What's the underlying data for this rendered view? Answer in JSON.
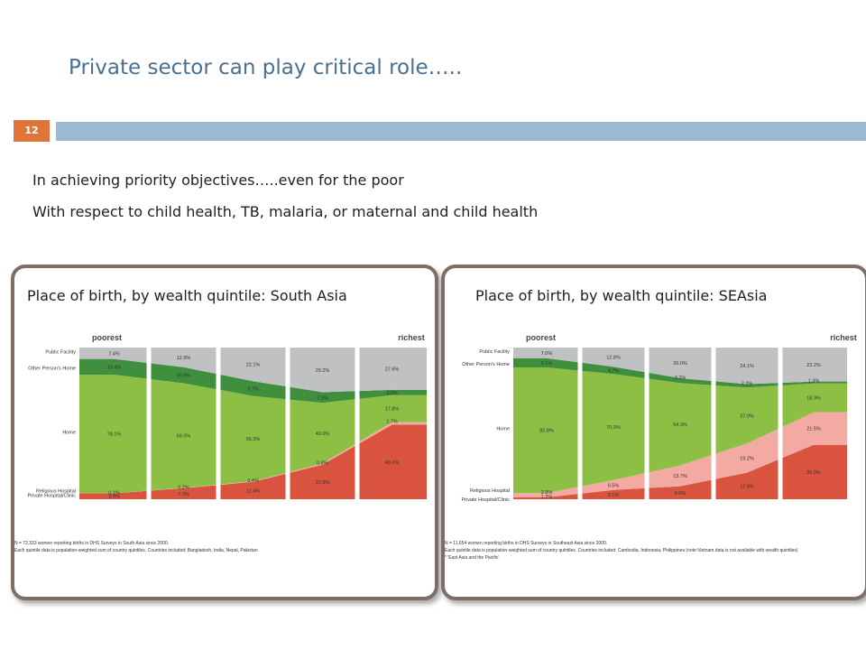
{
  "slide": {
    "title": "Private sector can play critical role…..",
    "number": "12",
    "bullets": [
      "In  achieving priority objectives…..even for the poor",
      "With respect to child health, TB, malaria, or maternal and child health"
    ],
    "colors": {
      "title": "#4a6f8f",
      "band": "#9cb8d3",
      "number_bg": "#e0743a"
    }
  },
  "chart_data": [
    {
      "type": "area",
      "title": "Place of birth, by wealth quintile: South Asia",
      "top_left_label": "poorest",
      "top_right_label": "richest",
      "quintiles": 5,
      "categories": [
        "Private Hospital/Clinic",
        "Religious Hospital",
        "Home",
        "Other Person's Home",
        "Public Facility"
      ],
      "category_labels": [
        "Public Facility",
        "Other Person's Home",
        "Home",
        "Religious Hospital",
        "Private Hospital/Clinic"
      ],
      "series": [
        {
          "name": "Private Hospital/Clinic",
          "color": "#d9533f",
          "values": [
            3.9,
            7.3,
            11.4,
            22.8,
            49.1
          ],
          "labels": [
            "3.9%",
            "7.3%",
            "11.4%",
            "22.8%",
            "49.1%"
          ]
        },
        {
          "name": "Religious Hospital",
          "color": "#f2aaa2",
          "values": [
            0.1,
            0.2,
            0.4,
            0.8,
            1.7
          ],
          "labels": [
            "0.1%",
            "0.2%",
            "0.4%",
            "0.8%",
            "1.7%"
          ]
        },
        {
          "name": "Home",
          "color": "#8dbf45",
          "values": [
            78.1,
            69.0,
            56.3,
            40.0,
            17.8
          ],
          "labels": [
            "78.1%",
            "69.0%",
            "56.3%",
            "40.0%",
            "17.8%"
          ]
        },
        {
          "name": "Other Person's Home",
          "color": "#3f8f3f",
          "values": [
            10.4,
            10.6,
            9.7,
            7.0,
            3.5
          ],
          "labels": [
            "10.4%",
            "10.6%",
            "9.7%",
            "7.0%",
            "3.5%"
          ]
        },
        {
          "name": "Public Facility",
          "color": "#bfc1c3",
          "values": [
            7.4,
            12.9,
            22.1,
            29.2,
            27.6
          ],
          "labels": [
            "7.4%",
            "12.9%",
            "22.1%",
            "29.2%",
            "27.6%"
          ]
        }
      ],
      "notes": [
        "N = 72,333 women reporting births in DHS Surveys in South Asia since 2000.",
        "Each quintile data is population-weighted sum of country quintiles.  Countries included: Bangladesh, India, Nepal, Pakistan"
      ]
    },
    {
      "type": "area",
      "title": "Place of birth, by wealth quintile: SEAsia",
      "top_left_label": "poorest",
      "top_right_label": "richest",
      "quintiles": 5,
      "categories": [
        "Private Hospital/Clinic",
        "Religious Hospital",
        "Home",
        "Other Person's Home",
        "Public Facility"
      ],
      "category_labels": [
        "Public Facility",
        "Other Person's Home",
        "Home",
        "Religious Hospital",
        "Private Hospital/Clinic"
      ],
      "series": [
        {
          "name": "Private Hospital/Clinic",
          "color": "#d9533f",
          "values": [
            1.2,
            6.1,
            8.6,
            17.5,
            35.9
          ],
          "labels": [
            "1.2%",
            "6.1%",
            "8.6%",
            "17.5%",
            "35.9%"
          ]
        },
        {
          "name": "Religious Hospital",
          "color": "#f2aaa2",
          "values": [
            2.9,
            6.5,
            13.7,
            19.2,
            21.5
          ],
          "labels": [
            "2.9%",
            "6.5%",
            "13.7%",
            "19.2%",
            "21.5%"
          ]
        },
        {
          "name": "Home",
          "color": "#8dbf45",
          "values": [
            82.8,
            70.0,
            54.3,
            37.0,
            18.9
          ],
          "labels": [
            "82.8%",
            "70.0%",
            "54.3%",
            "37.0%",
            "18.9%"
          ]
        },
        {
          "name": "Other Person's Home",
          "color": "#3f8f3f",
          "values": [
            6.1,
            4.7,
            3.2,
            2.2,
            1.3
          ],
          "labels": [
            "6.1%",
            "4.7%",
            "3.2%",
            "2.2%",
            "1.3%"
          ]
        },
        {
          "name": "Public Facility",
          "color": "#bfc1c3",
          "values": [
            7.0,
            12.8,
            20.0,
            24.1,
            22.2
          ],
          "labels": [
            "7.0%",
            "12.8%",
            "20.0%",
            "24.1%",
            "22.2%"
          ]
        }
      ],
      "notes": [
        "N = 11,654 women reporting births in DHS Surveys in Southeast Asia since 2000.",
        "Each quintile data is population-weighted sum of country quintiles.  Countries included: Cambodia, Indonesia, Philippines (note:Vietnam data is not available with wealth quintiles)",
        "* 'East Asia and the Pacific'"
      ]
    }
  ]
}
